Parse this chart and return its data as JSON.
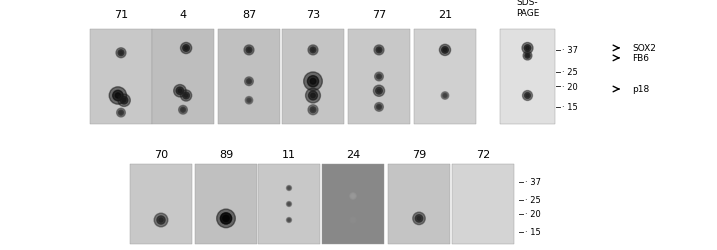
{
  "top_labels": [
    "71",
    "4",
    "87",
    "73",
    "77",
    "21"
  ],
  "bottom_labels": [
    "70",
    "89",
    "11",
    "24",
    "79",
    "72"
  ],
  "sds_label": "SDS-\nPAGE",
  "markers_right": [
    "SOX2",
    "FB6",
    "p18"
  ],
  "mw_markers_top": [
    "37",
    "25",
    "20",
    "15"
  ],
  "mw_markers_bottom": [
    "37",
    "25",
    "20",
    "15"
  ],
  "bg_color": "#ffffff",
  "panel_bg_light": "#e8e8e8",
  "panel_bg_dark": "#c8c8c8",
  "text_color": "#000000",
  "arrow_color": "#000000"
}
